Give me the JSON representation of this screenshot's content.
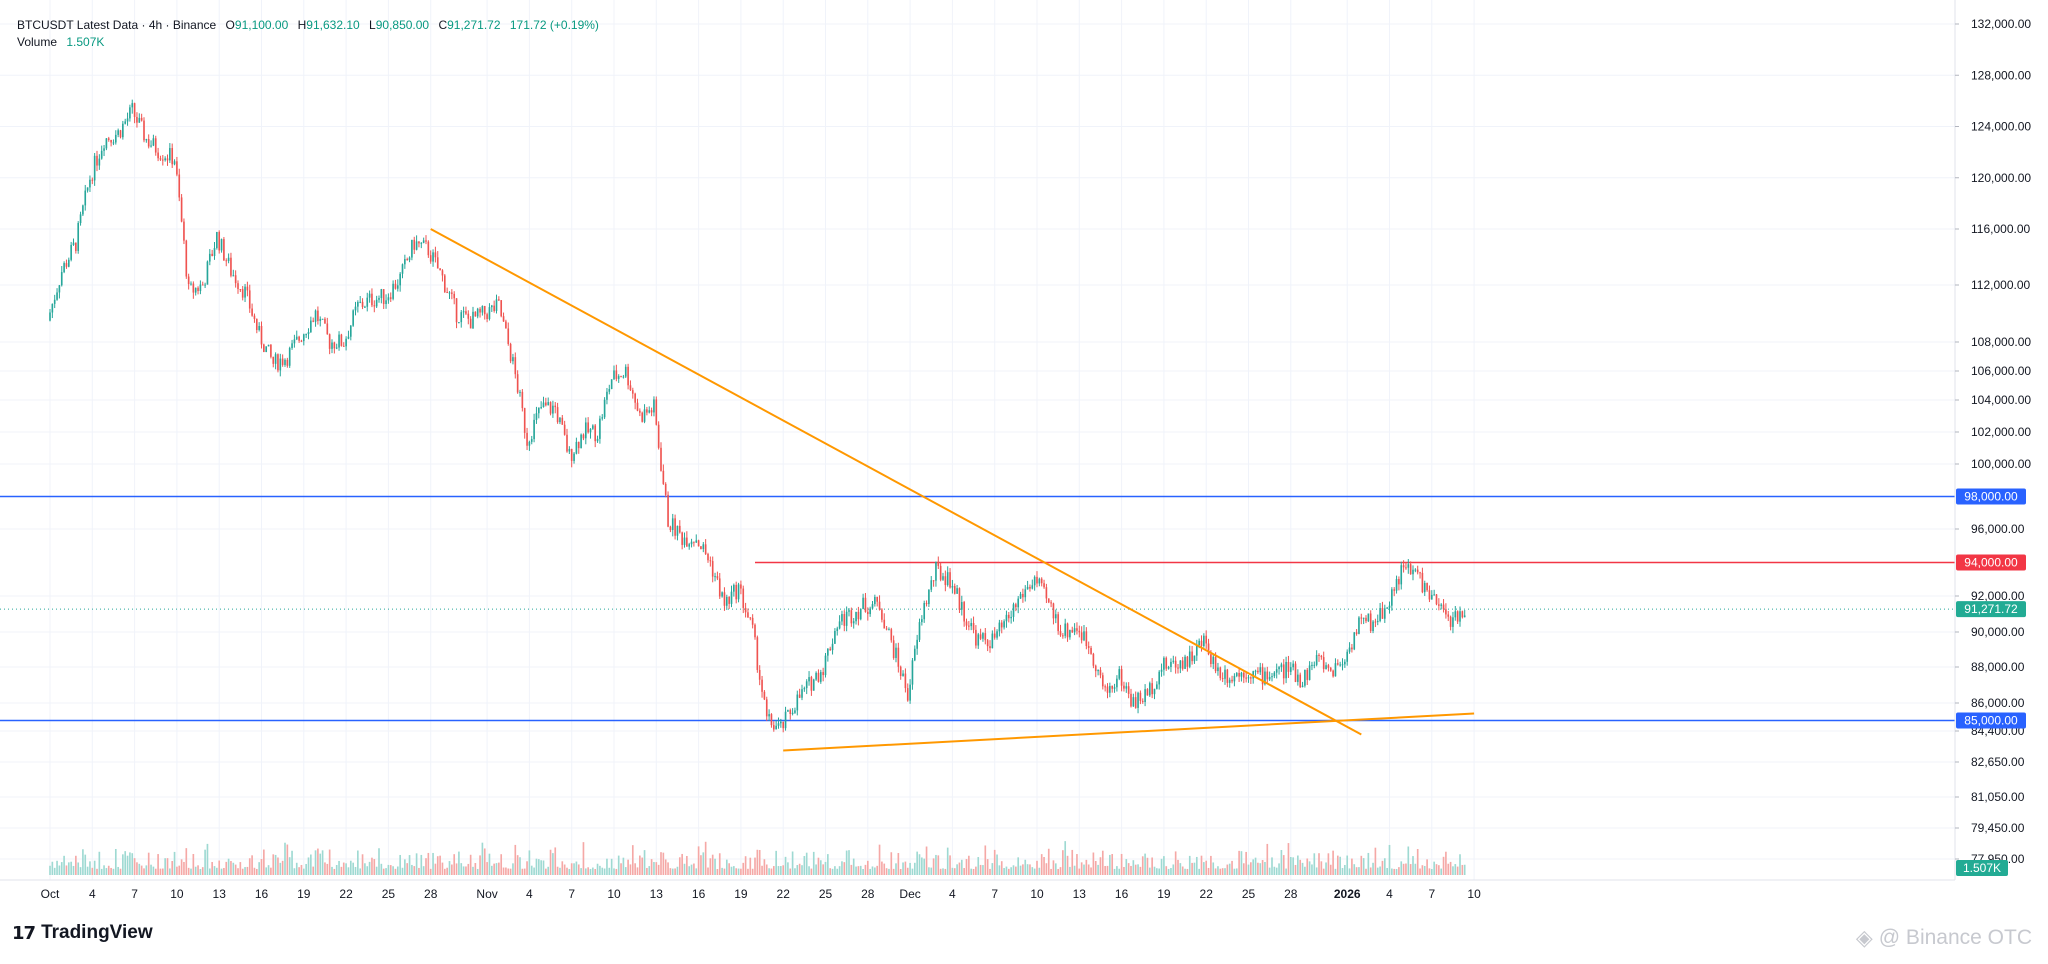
{
  "legend": {
    "title": "BTCUSDT Latest Data · 4h · Binance",
    "o_label": "O",
    "o_value": "91,100.00",
    "h_label": "H",
    "h_value": "91,632.10",
    "l_label": "L",
    "l_value": "90,850.00",
    "c_label": "C",
    "c_value": "91,271.72",
    "change": "171.72 (+0.19%)",
    "volume_label": "Volume",
    "volume_value": "1.507K"
  },
  "brand": {
    "logo": "17",
    "name": "TradingView"
  },
  "watermark": {
    "text": "@ Binance OTC"
  },
  "colors": {
    "up": "#26a69a",
    "down": "#ef5350",
    "support_line": "#2962ff",
    "resistance_line": "#f23645",
    "trendline": "#ff9800",
    "grid": "#f0f3fa",
    "axis_text": "#131722"
  },
  "chart_data": {
    "type": "candlestick",
    "symbol": "BTCUSDT",
    "timeframe": "4h",
    "exchange": "Binance",
    "y_axis_ticks": [
      "132,000.00",
      "128,000.00",
      "124,000.00",
      "120,000.00",
      "116,000.00",
      "112,000.00",
      "108,000.00",
      "106,000.00",
      "104,000.00",
      "102,000.00",
      "100,000.00",
      "96,000.00",
      "92,000.00",
      "90,000.00",
      "88,000.00",
      "86,000.00",
      "84,400.00",
      "82,650.00",
      "81,050.00",
      "79,450.00",
      "77,950.00"
    ],
    "x_axis_ticks": [
      "Oct",
      "4",
      "7",
      "10",
      "13",
      "16",
      "19",
      "22",
      "25",
      "28",
      "Nov",
      "4",
      "7",
      "10",
      "13",
      "16",
      "19",
      "22",
      "25",
      "28",
      "Dec",
      "4",
      "7",
      "10",
      "13",
      "16",
      "19",
      "22",
      "25",
      "28",
      "2026",
      "4",
      "7",
      "10"
    ],
    "horizontal_lines": [
      {
        "price": 98000,
        "label": "98,000.00",
        "color": "#2962ff"
      },
      {
        "price": 94000,
        "label": "94,000.00",
        "color": "#f23645"
      },
      {
        "price": 85000,
        "label": "85,000.00",
        "color": "#2962ff"
      }
    ],
    "last_price": {
      "price": 91271.72,
      "label": "91,271.72"
    },
    "volume_last": "1.507K",
    "trendlines": [
      {
        "name": "descending",
        "from": {
          "date": "Oct 28",
          "price": 116000
        },
        "to": {
          "date": "Jan 2",
          "price": 84200
        }
      },
      {
        "name": "ascending",
        "from": {
          "date": "Nov 22",
          "price": 83300
        },
        "to": {
          "date": "Jan 10",
          "price": 85400
        }
      }
    ],
    "price_path": [
      [
        "Oct 1",
        109500
      ],
      [
        "Oct 2",
        113000
      ],
      [
        "Oct 3",
        115000
      ],
      [
        "Oct 4",
        120000
      ],
      [
        "Oct 5",
        123000
      ],
      [
        "Oct 6",
        123500
      ],
      [
        "Oct 7",
        125200
      ],
      [
        "Oct 8",
        123000
      ],
      [
        "Oct 9",
        122000
      ],
      [
        "Oct 10",
        121500
      ],
      [
        "Oct 11",
        111500
      ],
      [
        "Oct 12",
        112000
      ],
      [
        "Oct 13",
        115500
      ],
      [
        "Oct 14",
        113000
      ],
      [
        "Oct 15",
        111500
      ],
      [
        "Oct 16",
        108500
      ],
      [
        "Oct 17",
        106500
      ],
      [
        "Oct 18",
        107000
      ],
      [
        "Oct 20",
        110000
      ],
      [
        "Oct 21",
        108000
      ],
      [
        "Oct 22",
        108000
      ],
      [
        "Oct 23",
        110500
      ],
      [
        "Oct 24",
        111000
      ],
      [
        "Oct 25",
        111200
      ],
      [
        "Oct 26",
        112500
      ],
      [
        "Oct 27",
        115000
      ],
      [
        "Oct 28",
        114500
      ],
      [
        "Oct 29",
        112500
      ],
      [
        "Oct 30",
        110000
      ],
      [
        "Oct 31",
        109500
      ],
      [
        "Nov 1",
        110000
      ],
      [
        "Nov 2",
        110500
      ],
      [
        "Nov 3",
        106500
      ],
      [
        "Nov 4",
        101500
      ],
      [
        "Nov 5",
        103500
      ],
      [
        "Nov 6",
        103500
      ],
      [
        "Nov 7",
        100500
      ],
      [
        "Nov 8",
        102000
      ],
      [
        "Nov 9",
        102000
      ],
      [
        "Nov 10",
        105500
      ],
      [
        "Nov 11",
        106000
      ],
      [
        "Nov 12",
        103000
      ],
      [
        "Nov 13",
        103500
      ],
      [
        "Nov 14",
        96500
      ],
      [
        "Nov 15",
        95500
      ],
      [
        "Nov 16",
        95500
      ],
      [
        "Nov 17",
        94000
      ],
      [
        "Nov 18",
        91500
      ],
      [
        "Nov 19",
        92500
      ],
      [
        "Nov 20",
        90000
      ],
      [
        "Nov 21",
        85000
      ],
      [
        "Nov 22",
        84500
      ],
      [
        "Nov 23",
        86000
      ],
      [
        "Nov 24",
        87000
      ],
      [
        "Nov 25",
        88000
      ],
      [
        "Nov 26",
        90500
      ],
      [
        "Nov 27",
        91000
      ],
      [
        "Nov 28",
        91500
      ],
      [
        "Nov 29",
        91500
      ],
      [
        "Dec 1",
        86500
      ],
      [
        "Dec 2",
        91000
      ],
      [
        "Dec 3",
        93500
      ],
      [
        "Dec 4",
        93000
      ],
      [
        "Dec 5",
        91000
      ],
      [
        "Dec 6",
        89500
      ],
      [
        "Dec 7",
        89500
      ],
      [
        "Dec 8",
        90500
      ],
      [
        "Dec 9",
        92000
      ],
      [
        "Dec 10",
        93000
      ],
      [
        "Dec 11",
        91500
      ],
      [
        "Dec 12",
        90000
      ],
      [
        "Dec 13",
        90300
      ],
      [
        "Dec 14",
        89000
      ],
      [
        "Dec 15",
        86500
      ],
      [
        "Dec 16",
        87500
      ],
      [
        "Dec 17",
        86000
      ],
      [
        "Dec 18",
        86500
      ],
      [
        "Dec 19",
        88000
      ],
      [
        "Dec 20",
        88200
      ],
      [
        "Dec 21",
        88500
      ],
      [
        "Dec 22",
        89500
      ],
      [
        "Dec 23",
        87800
      ],
      [
        "Dec 24",
        87500
      ],
      [
        "Dec 25",
        87800
      ],
      [
        "Dec 26",
        87500
      ],
      [
        "Dec 27",
        87700
      ],
      [
        "Dec 28",
        87900
      ],
      [
        "Dec 29",
        87300
      ],
      [
        "Dec 30",
        88500
      ],
      [
        "Dec 31",
        87800
      ],
      [
        "Jan 1",
        88500
      ],
      [
        "Jan 2",
        90500
      ],
      [
        "Jan 3",
        90500
      ],
      [
        "Jan 4",
        91500
      ],
      [
        "Jan 5",
        93500
      ],
      [
        "Jan 6",
        93500
      ],
      [
        "Jan 7",
        92000
      ],
      [
        "Jan 8",
        91000
      ],
      [
        "Jan 9",
        90600
      ],
      [
        "Jan 9b",
        91272
      ]
    ]
  }
}
